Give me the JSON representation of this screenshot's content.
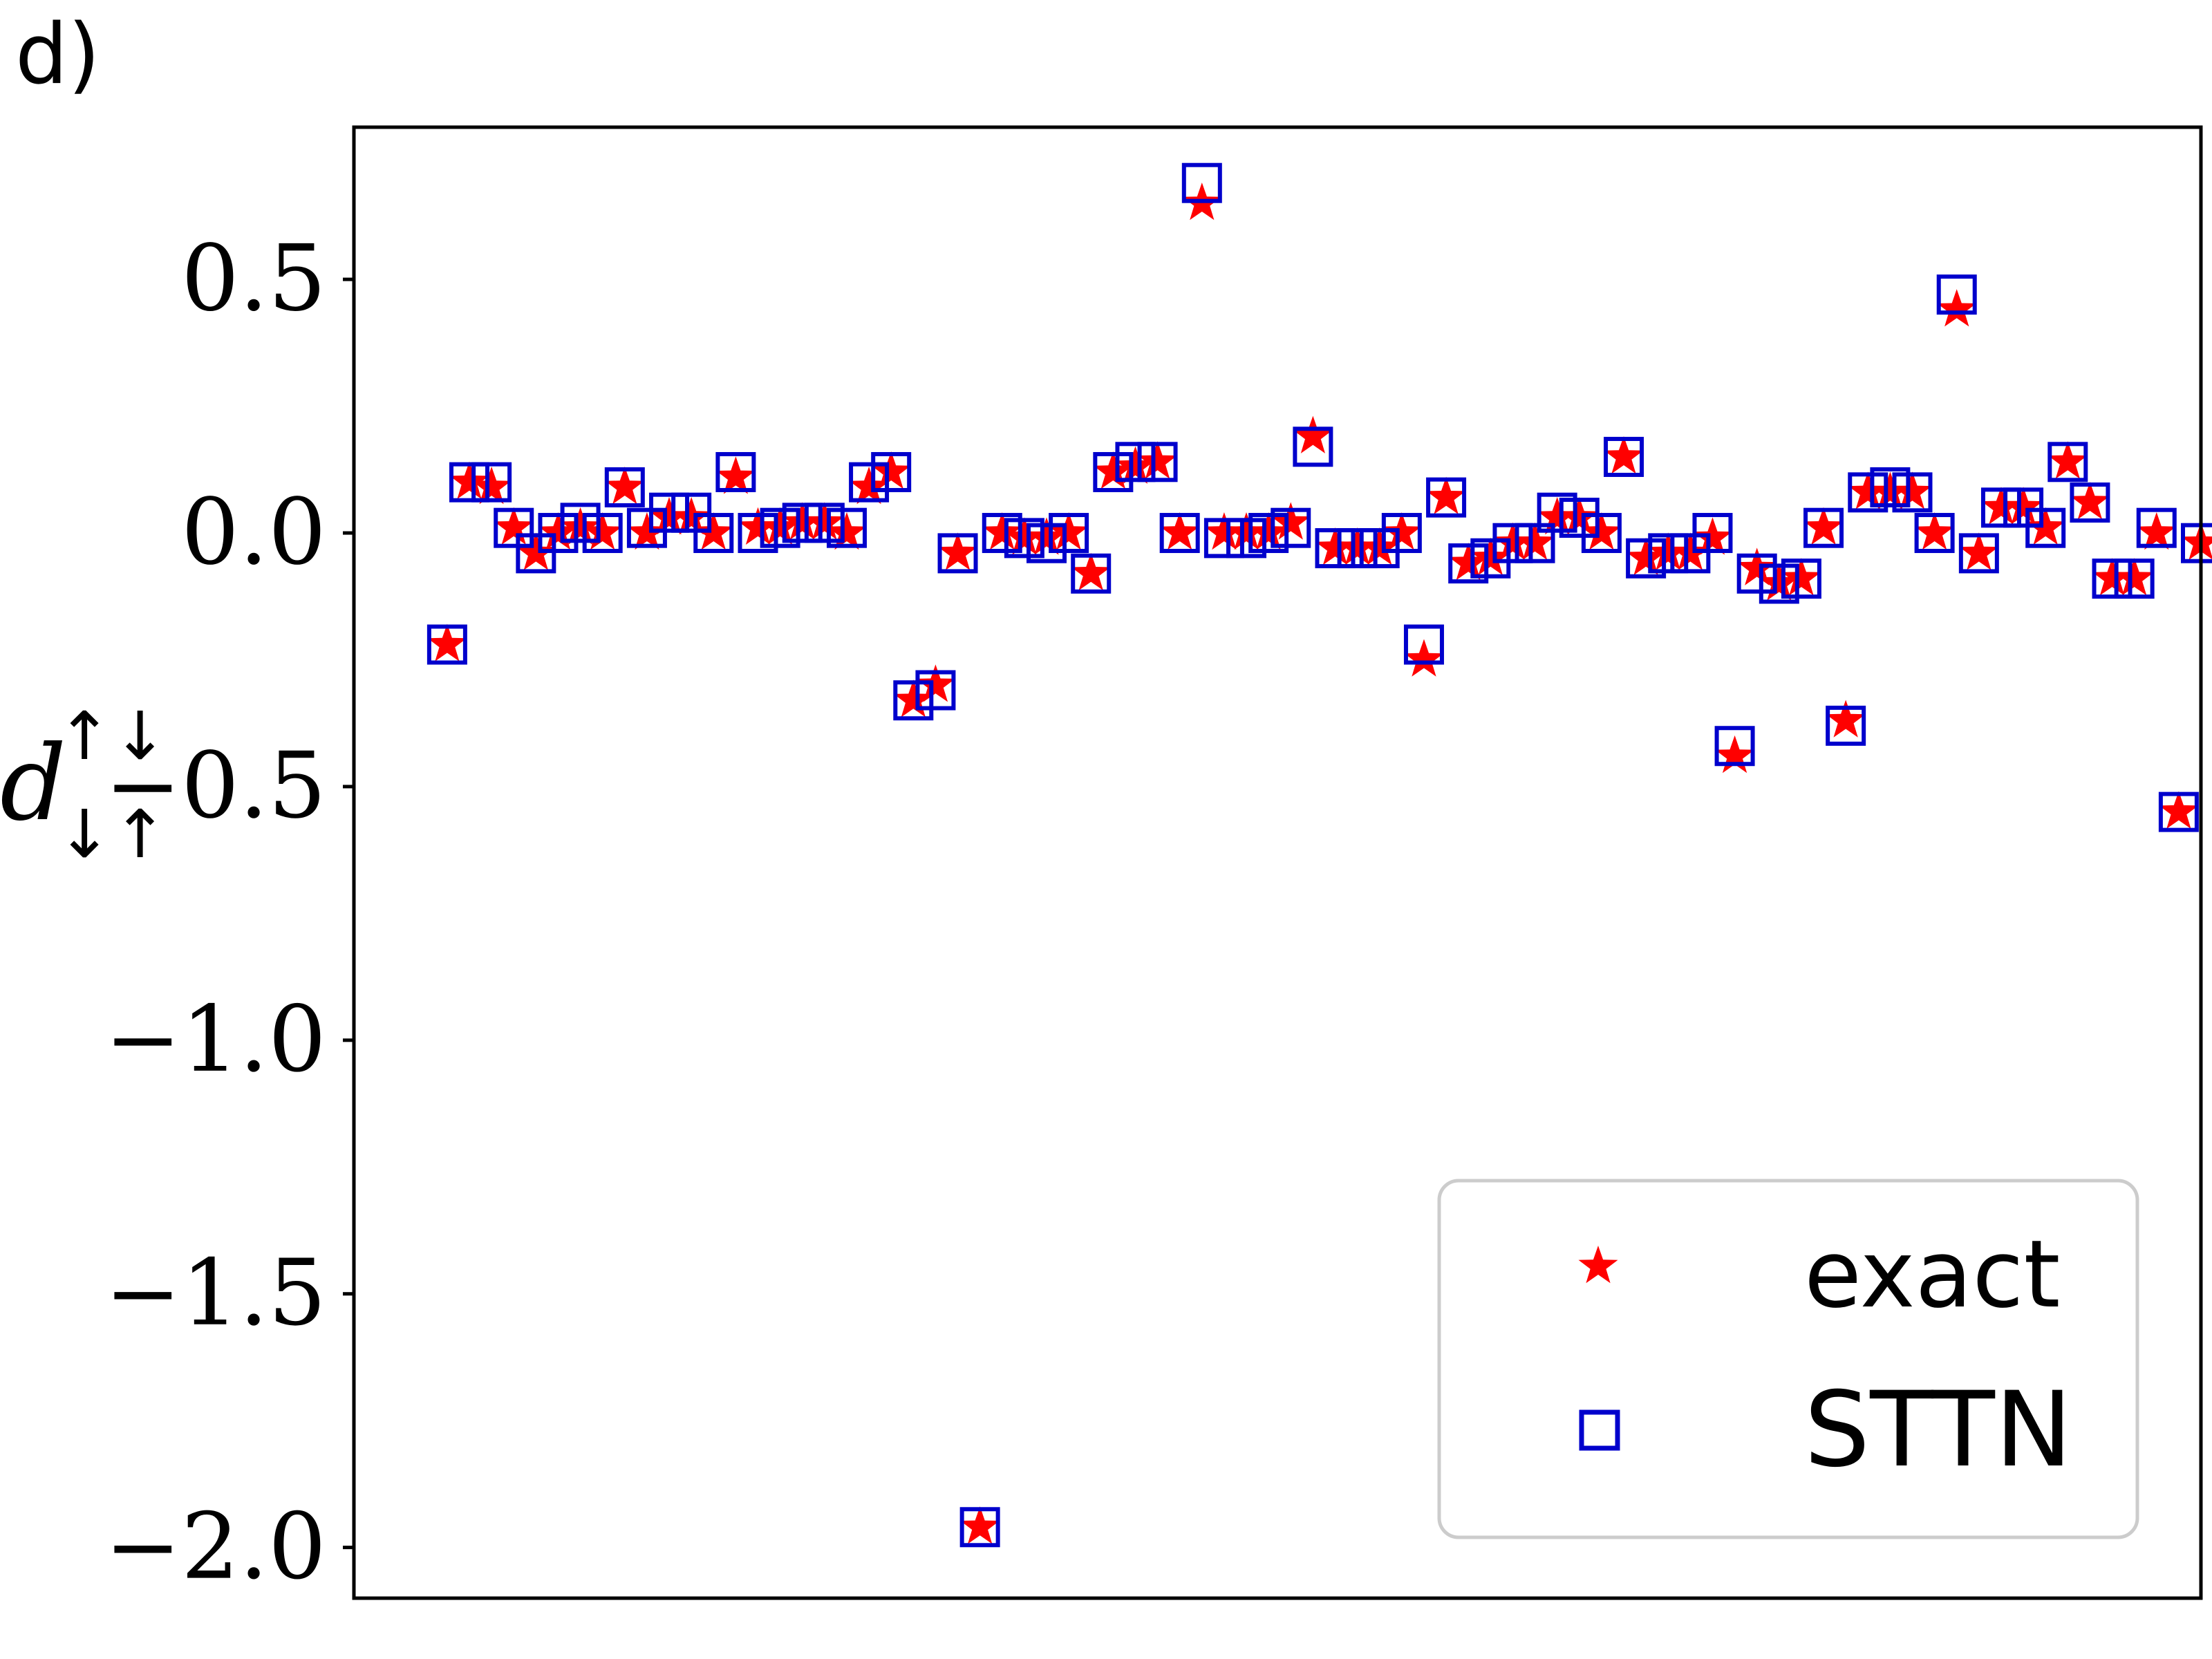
{
  "panel_label": "d)",
  "chart_data": {
    "type": "scatter",
    "ylabel": {
      "base": "d",
      "sup": "↑↓",
      "sub": "↓↑"
    },
    "yticks": [
      0.5,
      0.0,
      -0.5,
      -1.0,
      -1.5,
      -2.0
    ],
    "ytick_labels": [
      "0.5",
      "0.0",
      "−0.5",
      "−1.0",
      "−1.5",
      "−2.0"
    ],
    "ylim": [
      -2.1,
      0.8
    ],
    "xlim": [
      -4.2,
      79
    ],
    "xticks_shown": false,
    "grid": false,
    "legend": {
      "placement": "lower-right"
    },
    "colors": {
      "exact": "#ff0000",
      "sttn": "#0000cc",
      "legend_border": "#cccccc"
    },
    "series": [
      {
        "name": "exact",
        "marker": "star",
        "y": [
          -0.22,
          0.1,
          0.09,
          0.01,
          -0.04,
          0.0,
          0.01,
          0.0,
          0.09,
          0.0,
          0.03,
          0.03,
          0.0,
          0.11,
          0.01,
          0.01,
          0.02,
          0.02,
          0.0,
          0.09,
          0.12,
          -0.33,
          -0.3,
          -0.04,
          -1.96,
          0.0,
          -0.01,
          -0.01,
          0.0,
          -0.08,
          0.12,
          0.13,
          0.14,
          0.0,
          0.65,
          0.0,
          0.0,
          0.0,
          0.02,
          0.19,
          -0.03,
          -0.03,
          -0.03,
          0.0,
          -0.25,
          0.07,
          -0.06,
          -0.05,
          -0.02,
          -0.02,
          0.03,
          0.03,
          0.0,
          0.15,
          -0.05,
          -0.04,
          -0.04,
          -0.01,
          -0.44,
          -0.07,
          -0.1,
          -0.09,
          0.01,
          -0.37,
          0.08,
          0.08,
          0.08,
          0.0,
          0.44,
          -0.04,
          0.05,
          0.05,
          0.01,
          0.14,
          0.06,
          -0.09,
          -0.09,
          0.0,
          -0.55,
          -0.02
        ]
      },
      {
        "name": "STTN",
        "marker": "square",
        "y": [
          -0.22,
          0.1,
          0.1,
          0.01,
          -0.04,
          0.0,
          0.02,
          0.0,
          0.09,
          0.01,
          0.04,
          0.04,
          0.0,
          0.12,
          0.0,
          0.01,
          0.02,
          0.02,
          0.01,
          0.1,
          0.12,
          -0.33,
          -0.31,
          -0.04,
          -1.96,
          0.0,
          -0.01,
          -0.02,
          0.0,
          -0.08,
          0.12,
          0.14,
          0.14,
          0.0,
          0.69,
          -0.01,
          -0.01,
          0.0,
          0.01,
          0.17,
          -0.03,
          -0.03,
          -0.03,
          0.0,
          -0.22,
          0.07,
          -0.06,
          -0.05,
          -0.02,
          -0.02,
          0.04,
          0.03,
          0.0,
          0.15,
          -0.05,
          -0.04,
          -0.04,
          0.0,
          -0.42,
          -0.08,
          -0.1,
          -0.09,
          0.01,
          -0.38,
          0.08,
          0.09,
          0.08,
          0.0,
          0.47,
          -0.04,
          0.05,
          0.05,
          0.01,
          0.14,
          0.06,
          -0.09,
          -0.09,
          0.01,
          -0.55,
          -0.02
        ]
      }
    ]
  }
}
